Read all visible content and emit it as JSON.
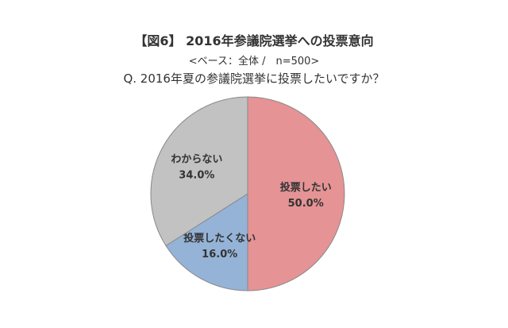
{
  "chart_data": {
    "type": "pie",
    "title": "【図6】 2016年参議院選挙への投票意向",
    "subtitle": "<ベース：全体 /　n=500>",
    "question": "Q. 2016年夏の参議院選挙に投票したいですか？",
    "slices": [
      {
        "label": "投票したい",
        "value": 50.0,
        "value_label": "50.0%",
        "color": "#e59395"
      },
      {
        "label": "投票したくない",
        "value": 16.0,
        "value_label": "16.0%",
        "color": "#95b3d7"
      },
      {
        "label": "わからない",
        "value": 34.0,
        "value_label": "34.0%",
        "color": "#c2c2c2"
      }
    ],
    "start": "12 o'clock",
    "direction": "clockwise",
    "legend": "none"
  }
}
